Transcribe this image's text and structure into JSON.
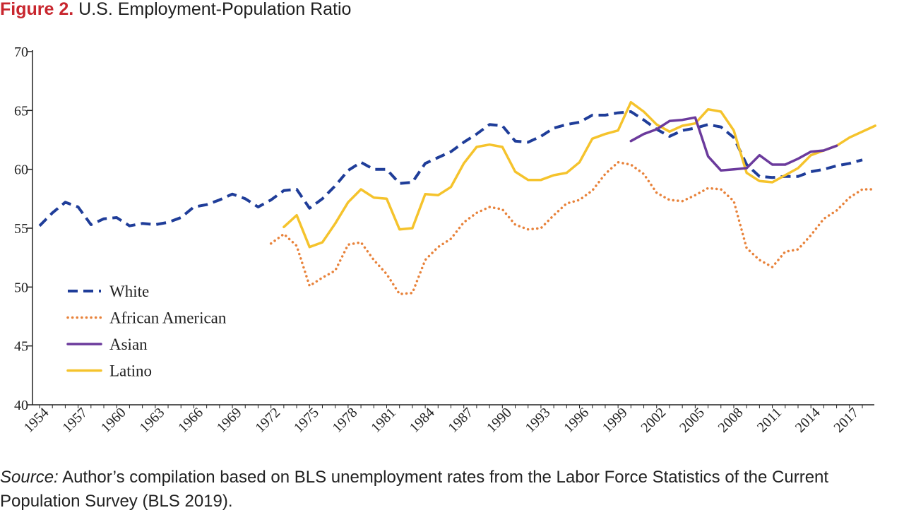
{
  "figure": {
    "label": "Figure 2.",
    "title": "U.S. Employment-Population Ratio"
  },
  "source": {
    "label": "Source:",
    "text": " Author’s compilation based on BLS unemployment rates from the Labor Force Statistics of the Current Population Survey (BLS 2019)."
  },
  "chart_data": {
    "type": "line",
    "title": "U.S. Employment-Population Ratio",
    "xlabel": "",
    "ylabel": "",
    "xlim": [
      1954,
      2018
    ],
    "ylim": [
      40,
      70
    ],
    "yticks": [
      40,
      45,
      50,
      55,
      60,
      65,
      70
    ],
    "xticks": [
      1954,
      1957,
      1960,
      1963,
      1966,
      1969,
      1972,
      1975,
      1978,
      1981,
      1984,
      1987,
      1990,
      1993,
      1996,
      1999,
      2002,
      2005,
      2008,
      2011,
      2014,
      2017
    ],
    "grid": false,
    "legend_position": "left-middle",
    "series": [
      {
        "name": "White",
        "color": "#1f3d99",
        "style": "dashed",
        "start_year": 1954,
        "values": [
          55.2,
          56.3,
          57.2,
          56.8,
          55.3,
          55.8,
          55.9,
          55.2,
          55.4,
          55.3,
          55.5,
          55.9,
          56.8,
          57.0,
          57.4,
          57.9,
          57.5,
          56.8,
          57.4,
          58.2,
          58.3,
          56.7,
          57.5,
          58.6,
          59.9,
          60.6,
          60.0,
          60.0,
          58.8,
          58.9,
          60.5,
          61.0,
          61.5,
          62.3,
          63.0,
          63.8,
          63.7,
          62.4,
          62.3,
          62.8,
          63.5,
          63.8,
          64.0,
          64.6,
          64.6,
          64.8,
          64.9,
          64.2,
          63.4,
          62.8,
          63.3,
          63.5,
          63.8,
          63.6,
          62.7,
          60.4,
          59.4,
          59.3,
          59.4,
          59.4,
          59.8,
          60.0,
          60.3,
          60.5,
          60.8
        ]
      },
      {
        "name": "African American",
        "color": "#e8823a",
        "style": "dotted",
        "start_year": 1972,
        "values": [
          53.7,
          54.5,
          53.5,
          50.1,
          50.8,
          51.4,
          53.6,
          53.8,
          52.3,
          51.1,
          49.4,
          49.5,
          52.3,
          53.4,
          54.1,
          55.5,
          56.3,
          56.8,
          56.6,
          55.3,
          54.9,
          55.0,
          56.1,
          57.1,
          57.4,
          58.2,
          59.6,
          60.6,
          60.4,
          59.6,
          58.0,
          57.4,
          57.3,
          57.8,
          58.4,
          58.3,
          57.3,
          53.3,
          52.3,
          51.7,
          53.0,
          53.2,
          54.4,
          55.8,
          56.5,
          57.6,
          58.3,
          58.3
        ]
      },
      {
        "name": "Asian",
        "color": "#6b3a9c",
        "style": "solid",
        "start_year": 2000,
        "values": [
          62.4,
          63.0,
          63.4,
          64.1,
          64.2,
          64.4,
          61.1,
          59.9,
          60.0,
          60.1,
          61.2,
          60.4,
          60.4,
          60.9,
          61.5,
          61.6,
          62.0
        ]
      },
      {
        "name": "Latino",
        "color": "#f5c32c",
        "style": "solid",
        "start_year": 1973,
        "values": [
          55.1,
          56.1,
          53.4,
          53.8,
          55.4,
          57.2,
          58.3,
          57.6,
          57.5,
          54.9,
          55.0,
          57.9,
          57.8,
          58.5,
          60.5,
          61.9,
          62.1,
          61.9,
          59.8,
          59.1,
          59.1,
          59.5,
          59.7,
          60.6,
          62.6,
          63.0,
          63.3,
          65.7,
          64.9,
          63.8,
          63.2,
          63.7,
          63.9,
          65.1,
          64.9,
          63.3,
          59.7,
          59.0,
          58.9,
          59.5,
          60.1,
          61.2,
          61.6,
          62.0,
          62.7,
          63.2,
          63.7
        ]
      }
    ]
  }
}
